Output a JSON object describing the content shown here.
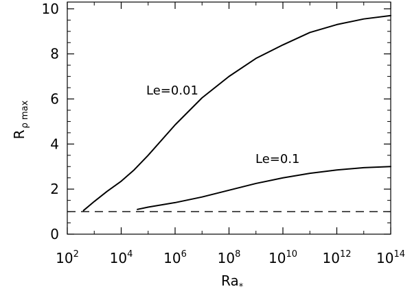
{
  "chart_data": {
    "type": "line",
    "title": "",
    "xlabel": {
      "main": "Ra",
      "sub": "*"
    },
    "ylabel": {
      "main": "R",
      "sub": "ρ max"
    },
    "xscale": "log",
    "xlim": [
      100.0,
      100000000000000.0
    ],
    "ylim": [
      0,
      10.3
    ],
    "grid": false,
    "legend": "none",
    "x_ticks": [
      {
        "base": "10",
        "exp": "2"
      },
      {
        "base": "10",
        "exp": "4"
      },
      {
        "base": "10",
        "exp": "6"
      },
      {
        "base": "10",
        "exp": "8"
      },
      {
        "base": "10",
        "exp": "10"
      },
      {
        "base": "10",
        "exp": "12"
      },
      {
        "base": "10",
        "exp": "14"
      }
    ],
    "y_ticks": [
      "0",
      "2",
      "4",
      "6",
      "8",
      "10"
    ],
    "series": [
      {
        "annotation": "Le=0.01",
        "style": "solid",
        "points": [
          [
            400.0,
            1.05
          ],
          [
            1000.0,
            1.45
          ],
          [
            3000.0,
            1.9
          ],
          [
            10000.0,
            2.35
          ],
          [
            30000.0,
            2.85
          ],
          [
            100000.0,
            3.5
          ],
          [
            1000000.0,
            4.85
          ],
          [
            10000000.0,
            6.05
          ],
          [
            100000000.0,
            7.0
          ],
          [
            1000000000.0,
            7.8
          ],
          [
            10000000000.0,
            8.4
          ],
          [
            100000000000.0,
            8.95
          ],
          [
            1000000000000.0,
            9.3
          ],
          [
            10000000000000.0,
            9.55
          ],
          [
            100000000000000.0,
            9.7
          ]
        ]
      },
      {
        "annotation": "Le=0.1",
        "style": "solid",
        "points": [
          [
            40000.0,
            1.1
          ],
          [
            100000.0,
            1.2
          ],
          [
            1000000.0,
            1.4
          ],
          [
            10000000.0,
            1.65
          ],
          [
            100000000.0,
            1.95
          ],
          [
            1000000000.0,
            2.25
          ],
          [
            10000000000.0,
            2.5
          ],
          [
            100000000000.0,
            2.7
          ],
          [
            1000000000000.0,
            2.85
          ],
          [
            10000000000000.0,
            2.95
          ],
          [
            100000000000000.0,
            3.0
          ]
        ]
      },
      {
        "annotation": "",
        "style": "dashed",
        "points": [
          [
            100.0,
            1.0
          ],
          [
            100000000000000.0,
            1.0
          ]
        ]
      }
    ]
  }
}
